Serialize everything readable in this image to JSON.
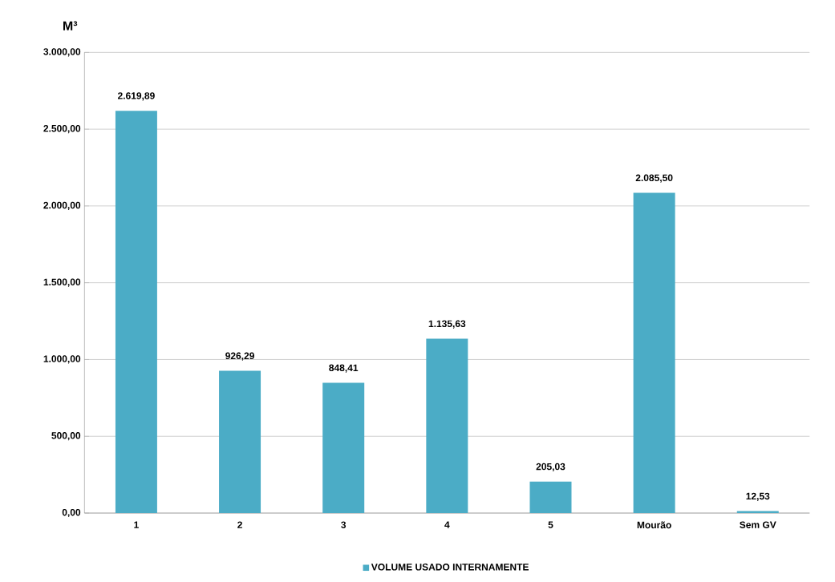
{
  "chart_data": {
    "type": "bar",
    "categories": [
      "1",
      "2",
      "3",
      "4",
      "5",
      "Mourão",
      "Sem GV"
    ],
    "series": [
      {
        "name": "VOLUME USADO INTERNAMENTE",
        "color": "#4bacc6",
        "values": [
          2619.89,
          926.29,
          848.41,
          1135.63,
          205.03,
          2085.5,
          12.53
        ],
        "value_labels": [
          "2.619,89",
          "926,29",
          "848,41",
          "1.135,63",
          "205,03",
          "2.085,50",
          "12,53"
        ]
      }
    ],
    "ylabel": "M³",
    "ylim": [
      0,
      3000
    ],
    "yticks": [
      {
        "value": 0,
        "label": "0,00"
      },
      {
        "value": 500,
        "label": "500,00"
      },
      {
        "value": 1000,
        "label": "1.000,00"
      },
      {
        "value": 1500,
        "label": "1.500,00"
      },
      {
        "value": 2000,
        "label": "2.000,00"
      },
      {
        "value": 2500,
        "label": "2.500,00"
      },
      {
        "value": 3000,
        "label": "3.000,00"
      }
    ],
    "grid": "y",
    "legend": "bottom"
  }
}
